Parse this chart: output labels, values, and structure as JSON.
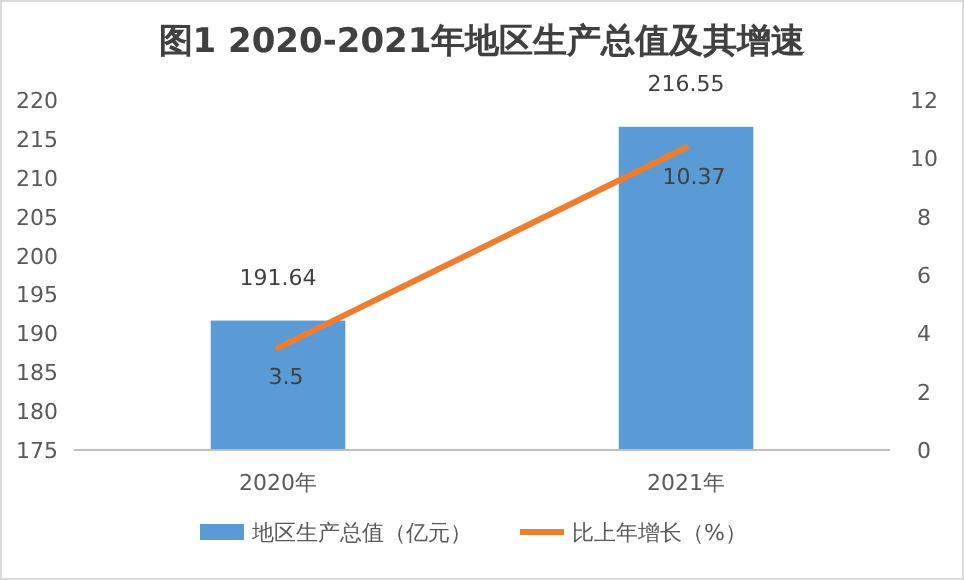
{
  "chart_data": {
    "type": "bar",
    "title": "图1  2020-2021年地区生产总值及其增速",
    "categories": [
      "2020年",
      "2021年"
    ],
    "series": [
      {
        "name": "地区生产总值（亿元）",
        "color": "#5b9bd5",
        "values": [
          191.64,
          216.55
        ]
      },
      {
        "name": "比上年增长（%）",
        "type": "line",
        "axis": "y2",
        "color": "#ed7d31",
        "values": [
          3.5,
          10.37
        ],
        "marker": "none"
      }
    ],
    "ylim": [
      175,
      220
    ],
    "yticks": [
      175,
      180,
      185,
      190,
      195,
      200,
      205,
      210,
      215,
      220
    ],
    "y2lim": [
      0,
      12
    ],
    "y2ticks": [
      0,
      2,
      4,
      6,
      8,
      10,
      12
    ],
    "data_labels": true,
    "legend": "bottom",
    "grid": false
  }
}
